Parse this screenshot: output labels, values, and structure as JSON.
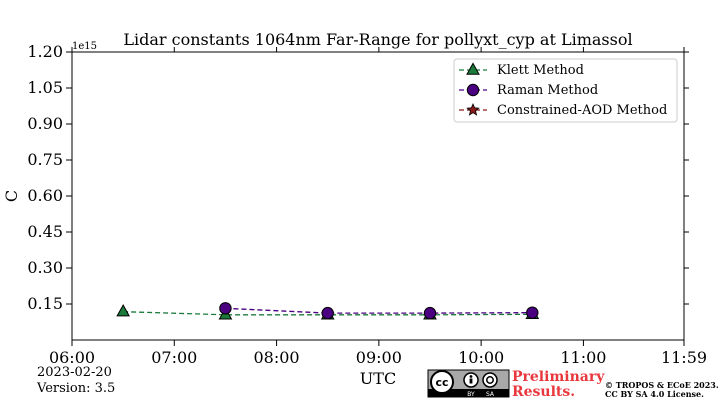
{
  "chart_data": {
    "type": "line",
    "title": "Lidar constants 1064nm Far-Range for pollyxt_cyp at Limassol",
    "xlabel": "UTC",
    "ylabel": "C",
    "y_multiplier_label": "1e15",
    "y_scale_factor": 1000000000000000.0,
    "xlim": [
      "06:00",
      "11:59"
    ],
    "ylim": [
      0,
      1.2
    ],
    "x_ticks": [
      "06:00",
      "07:00",
      "08:00",
      "09:00",
      "10:00",
      "11:00",
      "11:59"
    ],
    "y_ticks": [
      0.15,
      0.3,
      0.45,
      0.6,
      0.75,
      0.9,
      1.05,
      1.2
    ],
    "y_tick_labels": [
      "0.15",
      "0.30",
      "0.45",
      "0.60",
      "0.75",
      "0.90",
      "1.05",
      "1.20"
    ],
    "grid": false,
    "legend_position": "top-right",
    "series": [
      {
        "name": "Klett Method",
        "color": "#1b7a3a",
        "marker": "triangle",
        "line_style": "dashed",
        "x": [
          "06:30",
          "07:30",
          "08:30",
          "09:30",
          "10:30"
        ],
        "y": [
          0.118,
          0.105,
          0.105,
          0.105,
          0.107
        ]
      },
      {
        "name": "Raman Method",
        "color": "#4b0082",
        "marker": "circle",
        "line_style": "dashed",
        "x": [
          "07:30",
          "08:30",
          "09:30",
          "10:30"
        ],
        "y": [
          0.132,
          0.112,
          0.112,
          0.114
        ]
      },
      {
        "name": "Constrained-AOD Method",
        "color": "#8b1a1a",
        "marker": "star",
        "line_style": "dashed",
        "x": [],
        "y": []
      }
    ]
  },
  "footer": {
    "date": "2023-02-20",
    "version": "Version: 3.5",
    "preliminary_line1": "Preliminary",
    "preliminary_line2": "Results.",
    "copyright_line1": "© TROPOS & ECoE 2023.",
    "copyright_line2": "CC BY SA 4.0 License.",
    "license_badge_by": "BY",
    "license_badge_sa": "SA",
    "license_badge_cc": "cc"
  }
}
